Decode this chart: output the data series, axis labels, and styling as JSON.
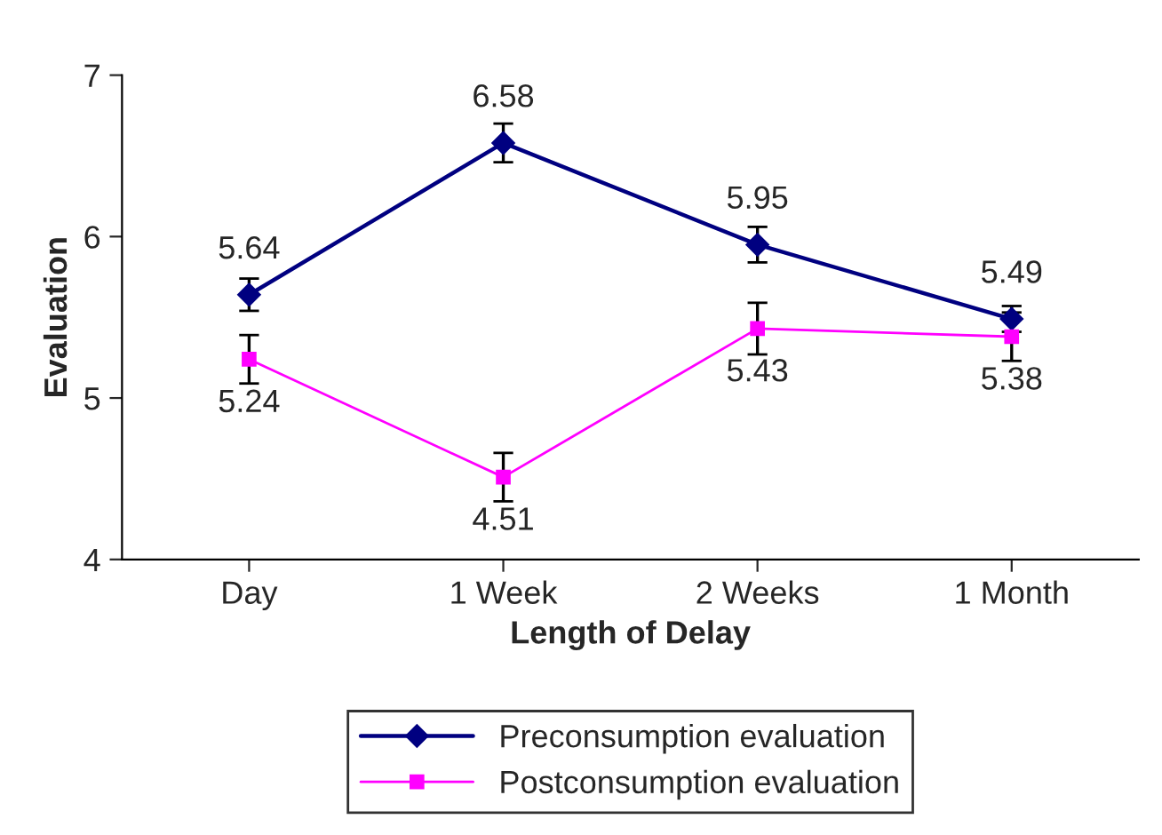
{
  "chart_data": {
    "type": "line",
    "xlabel": "Length of Delay",
    "ylabel": "Evaluation",
    "categories": [
      "Day",
      "1 Week",
      "2 Weeks",
      "1 Month"
    ],
    "series": [
      {
        "name": "Preconsumption evaluation",
        "color": "#000080",
        "values": [
          5.64,
          6.58,
          5.95,
          5.49
        ],
        "errors": [
          0.1,
          0.12,
          0.11,
          0.08
        ],
        "marker": "diamond"
      },
      {
        "name": "Postconsumption evaluation",
        "color": "#ff00ff",
        "values": [
          5.24,
          4.51,
          5.43,
          5.38
        ],
        "errors": [
          0.15,
          0.15,
          0.16,
          0.15
        ],
        "marker": "square"
      }
    ],
    "ylim": [
      4,
      7
    ],
    "yticks": [
      4,
      5,
      6,
      7
    ],
    "grid": false,
    "legend": "bottom",
    "data_labels": true,
    "line_style": "solid"
  }
}
